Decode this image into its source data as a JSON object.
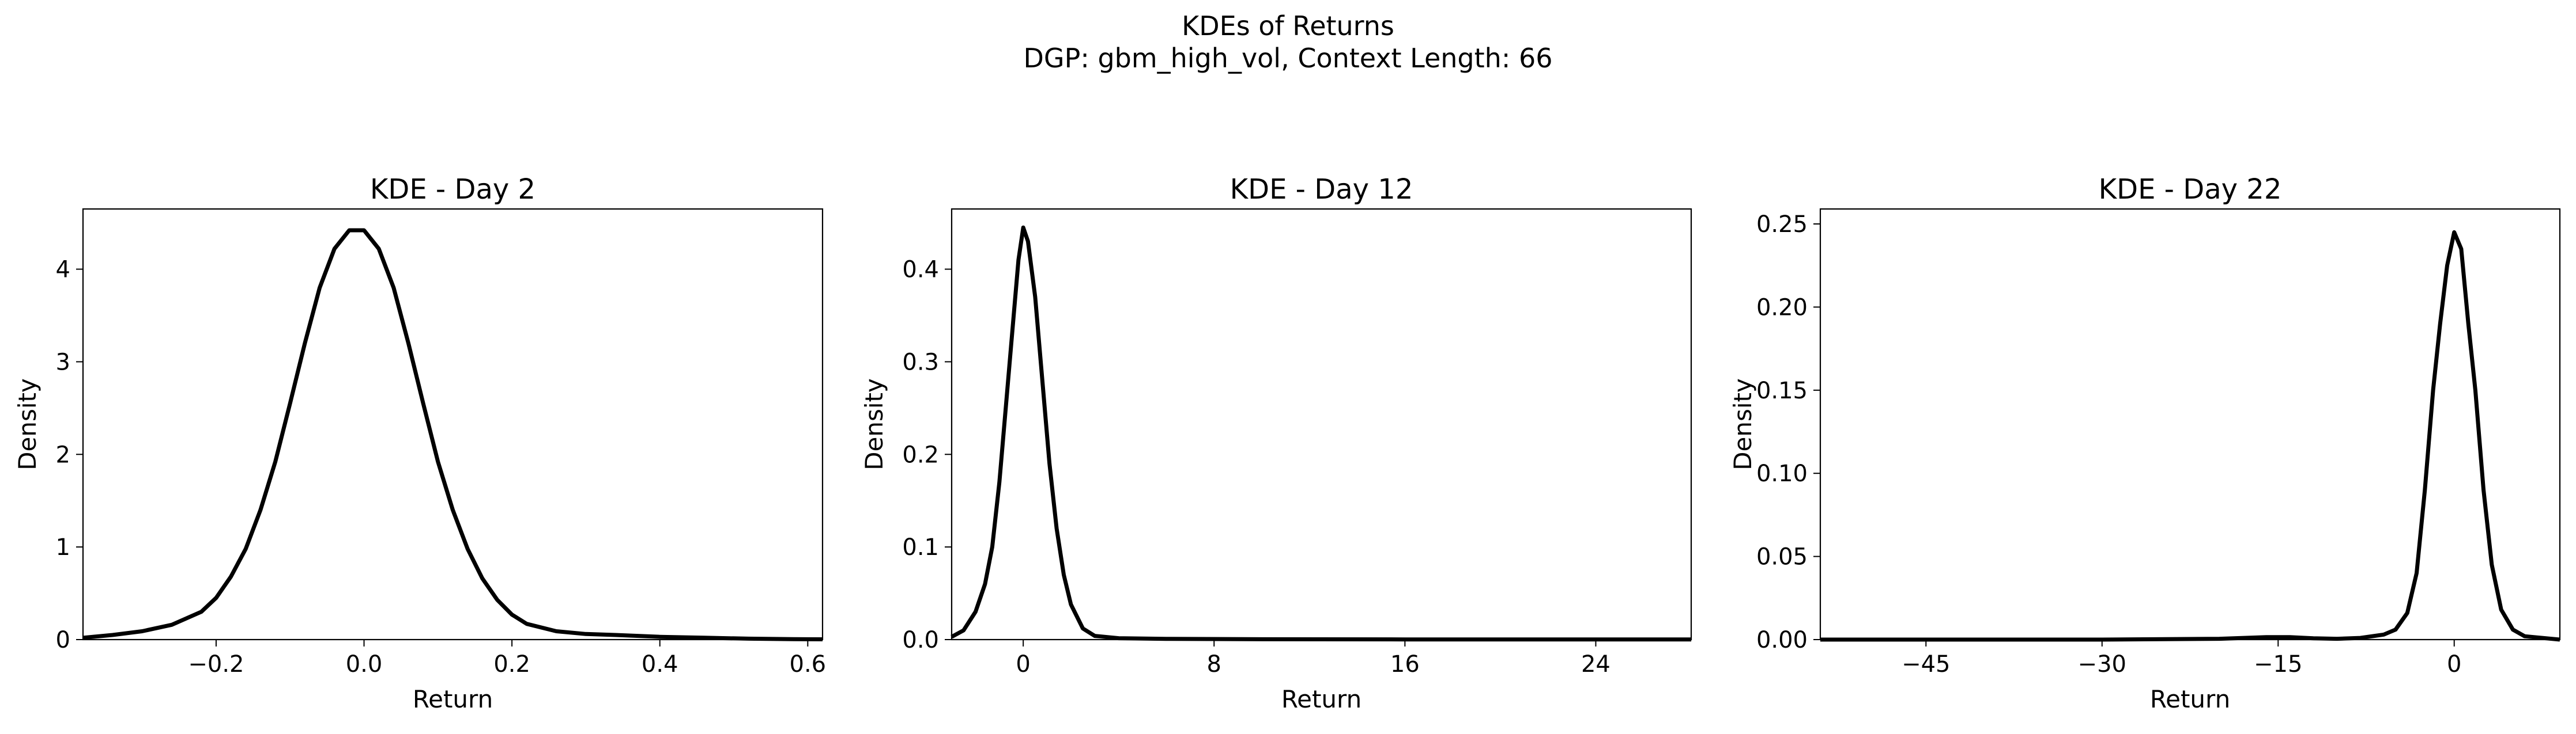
{
  "figure": {
    "title_line1": "KDEs of Returns",
    "title_line2": "DGP: gbm_high_vol, Context Length: 66"
  },
  "chart_data": [
    {
      "type": "line",
      "title": "KDE - Day 2",
      "xlabel": "Return",
      "ylabel": "Density",
      "xlim": [
        -0.38,
        0.62
      ],
      "ylim": [
        0,
        4.65
      ],
      "xticks": [
        -0.2,
        0.0,
        0.2,
        0.4,
        0.6
      ],
      "xtick_labels": [
        "−0.2",
        "0.0",
        "0.2",
        "0.4",
        "0.6"
      ],
      "yticks": [
        0,
        1,
        2,
        3,
        4
      ],
      "ytick_labels": [
        "0",
        "1",
        "2",
        "3",
        "4"
      ],
      "grid": false,
      "line_color": "#000000",
      "series": [
        {
          "x": [
            -0.38,
            -0.34,
            -0.3,
            -0.26,
            -0.22,
            -0.2,
            -0.18,
            -0.16,
            -0.14,
            -0.12,
            -0.1,
            -0.08,
            -0.06,
            -0.04,
            -0.02,
            0.0,
            0.02,
            0.04,
            0.06,
            0.08,
            0.1,
            0.12,
            0.14,
            0.16,
            0.18,
            0.2,
            0.22,
            0.26,
            0.3,
            0.34,
            0.4,
            0.46,
            0.52,
            0.58,
            0.62
          ],
          "y": [
            0.02,
            0.05,
            0.09,
            0.16,
            0.3,
            0.45,
            0.68,
            0.98,
            1.4,
            1.92,
            2.55,
            3.2,
            3.8,
            4.22,
            4.42,
            4.42,
            4.22,
            3.8,
            3.2,
            2.55,
            1.92,
            1.4,
            0.98,
            0.66,
            0.43,
            0.27,
            0.17,
            0.09,
            0.06,
            0.05,
            0.03,
            0.02,
            0.01,
            0.005,
            0.003
          ]
        }
      ]
    },
    {
      "type": "line",
      "title": "KDE - Day 12",
      "xlabel": "Return",
      "ylabel": "Density",
      "xlim": [
        -3.0,
        28.0
      ],
      "ylim": [
        0,
        0.465
      ],
      "xticks": [
        0,
        8,
        16,
        24
      ],
      "xtick_labels": [
        "0",
        "8",
        "16",
        "24"
      ],
      "yticks": [
        0.0,
        0.1,
        0.2,
        0.3,
        0.4
      ],
      "ytick_labels": [
        "0.0",
        "0.1",
        "0.2",
        "0.3",
        "0.4"
      ],
      "grid": false,
      "line_color": "#000000",
      "series": [
        {
          "x": [
            -3.0,
            -2.5,
            -2.0,
            -1.6,
            -1.3,
            -1.0,
            -0.7,
            -0.4,
            -0.2,
            0.0,
            0.2,
            0.5,
            0.8,
            1.1,
            1.4,
            1.7,
            2.0,
            2.5,
            3.0,
            4.0,
            6.0,
            10.0,
            16.0,
            22.0,
            28.0
          ],
          "y": [
            0.003,
            0.01,
            0.03,
            0.06,
            0.1,
            0.17,
            0.26,
            0.35,
            0.41,
            0.445,
            0.43,
            0.37,
            0.28,
            0.19,
            0.12,
            0.07,
            0.038,
            0.012,
            0.004,
            0.0015,
            0.0008,
            0.0004,
            0.0002,
            0.0001,
            0.0001
          ]
        }
      ]
    },
    {
      "type": "line",
      "title": "KDE - Day 22",
      "xlabel": "Return",
      "ylabel": "Density",
      "xlim": [
        -54.0,
        9.0
      ],
      "ylim": [
        0,
        0.259
      ],
      "xticks": [
        -45,
        -30,
        -15,
        0
      ],
      "xtick_labels": [
        "−45",
        "−30",
        "−15",
        "0"
      ],
      "yticks": [
        0.0,
        0.05,
        0.1,
        0.15,
        0.2,
        0.25
      ],
      "ytick_labels": [
        "0.00",
        "0.05",
        "0.10",
        "0.15",
        "0.20",
        "0.25"
      ],
      "grid": false,
      "line_color": "#000000",
      "series": [
        {
          "x": [
            -54.0,
            -45.0,
            -30.0,
            -20.0,
            -16.0,
            -14.0,
            -12.0,
            -10.0,
            -8.0,
            -6.0,
            -5.0,
            -4.0,
            -3.2,
            -2.5,
            -1.8,
            -1.2,
            -0.6,
            0.0,
            0.6,
            1.2,
            1.8,
            2.5,
            3.2,
            4.0,
            5.0,
            6.0,
            9.0
          ],
          "y": [
            0.0,
            0.0,
            0.0,
            0.0005,
            0.0015,
            0.0015,
            0.0008,
            0.0005,
            0.001,
            0.003,
            0.006,
            0.016,
            0.04,
            0.09,
            0.15,
            0.19,
            0.225,
            0.245,
            0.235,
            0.19,
            0.15,
            0.09,
            0.045,
            0.018,
            0.006,
            0.002,
            0.0
          ]
        }
      ]
    }
  ]
}
